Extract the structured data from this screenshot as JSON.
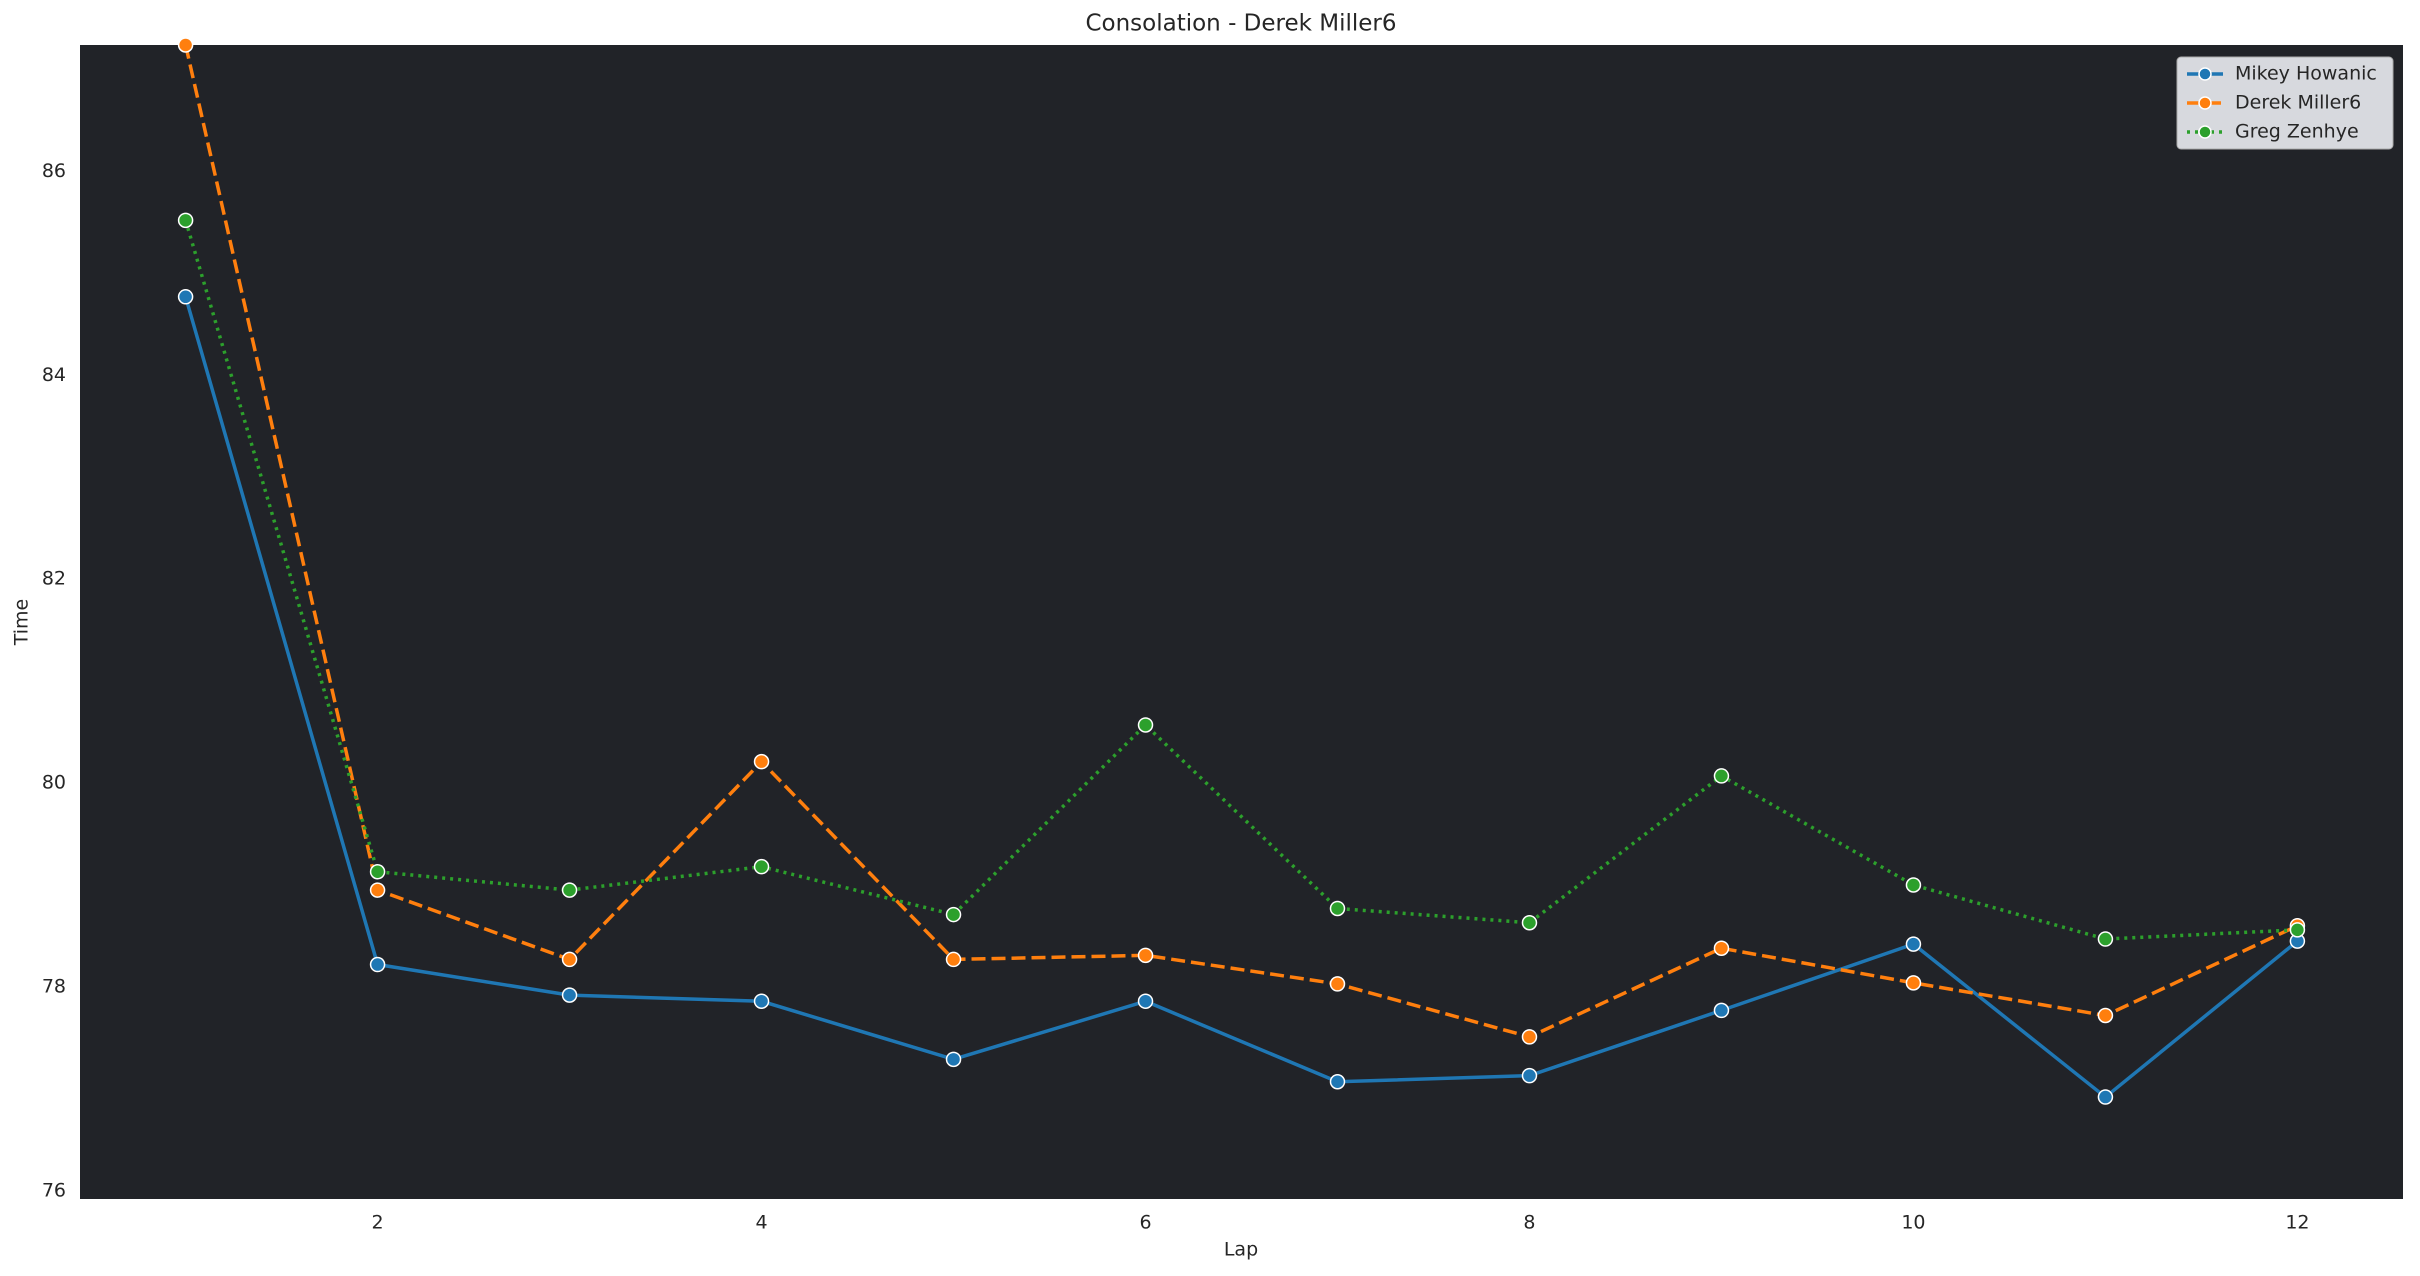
{
  "chart_data": {
    "type": "line",
    "title": "Consolation - Derek Miller6",
    "x_label": "Lap",
    "y_label": "Time",
    "x": [
      1,
      2,
      3,
      4,
      5,
      6,
      7,
      8,
      9,
      10,
      11,
      12
    ],
    "series": [
      {
        "name": "Mikey Howanic",
        "color": "#1f77b4",
        "linestyle": "solid",
        "values": [
          84.77,
          78.22,
          77.92,
          77.86,
          77.29,
          77.86,
          77.07,
          77.13,
          77.77,
          78.42,
          76.92,
          78.45
        ]
      },
      {
        "name": "Derek Miller6",
        "color": "#ff7f0e",
        "linestyle": "dashed",
        "values": [
          87.24,
          78.95,
          78.27,
          80.21,
          78.27,
          78.31,
          78.03,
          77.51,
          78.38,
          78.04,
          77.72,
          78.6
        ]
      },
      {
        "name": "Greg Zenhye",
        "color": "#2ca02c",
        "linestyle": "dotted",
        "values": [
          85.52,
          79.13,
          78.95,
          79.18,
          78.71,
          80.57,
          78.77,
          78.63,
          80.07,
          79.0,
          78.47,
          78.56
        ]
      }
    ],
    "xlim": [
      0.45,
      12.55
    ],
    "ylim": [
      75.92,
      87.24
    ],
    "xticks": [
      2,
      4,
      6,
      8,
      10,
      12
    ],
    "yticks": [
      76,
      78,
      80,
      82,
      84,
      86
    ],
    "grid": false,
    "legend": "upper right",
    "background": "#212328"
  }
}
